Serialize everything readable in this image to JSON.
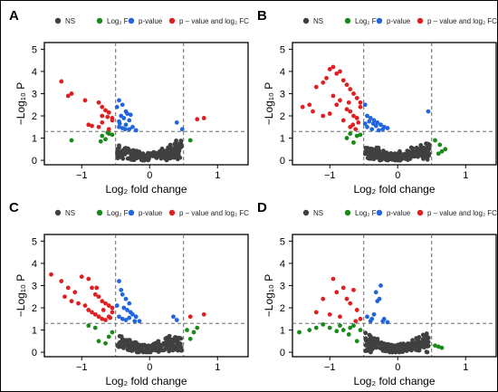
{
  "legend": [
    {
      "key": "ns",
      "label": "NS",
      "color": "#404040"
    },
    {
      "key": "fc",
      "label": "Log₂ FC",
      "color": "#1a8a1a"
    },
    {
      "key": "p",
      "label": "p-value",
      "color": "#2266dd"
    },
    {
      "key": "both",
      "label": "p – value and log₂ FC",
      "color": "#e02020"
    }
  ],
  "axis": {
    "xlabel": "Log₂ fold change",
    "ylabel": "−Log₁₀ P",
    "xticks": [
      "−1",
      "0",
      "1"
    ],
    "yticks": [
      "0",
      "1",
      "2",
      "3",
      "4",
      "5"
    ]
  },
  "chart_data": [
    {
      "panel": "A",
      "type": "scatter",
      "xlim": [
        -1.55,
        1.45
      ],
      "ylim": [
        -0.2,
        5.3
      ],
      "fc_cutoff": [
        -0.5,
        0.5
      ],
      "p_cutoff": 1.3,
      "points": {
        "both": [
          [
            -1.3,
            3.55
          ],
          [
            -1.2,
            2.9
          ],
          [
            -1.15,
            3.0
          ],
          [
            -0.95,
            2.7
          ],
          [
            -0.75,
            2.6
          ],
          [
            -0.7,
            2.4
          ],
          [
            -0.65,
            2.25
          ],
          [
            -0.6,
            2.15
          ],
          [
            -0.62,
            1.95
          ],
          [
            -0.55,
            1.9
          ],
          [
            -0.7,
            2.0
          ],
          [
            -0.9,
            1.6
          ],
          [
            -0.85,
            1.55
          ],
          [
            -0.75,
            1.5
          ],
          [
            -0.7,
            1.7
          ],
          [
            -0.6,
            1.4
          ],
          [
            -0.55,
            1.8
          ],
          [
            0.7,
            1.85
          ],
          [
            0.8,
            1.9
          ]
        ],
        "fc": [
          [
            -1.15,
            0.9
          ],
          [
            -0.7,
            1.1
          ],
          [
            -0.65,
            0.95
          ],
          [
            -0.6,
            1.2
          ],
          [
            -0.55,
            1.15
          ],
          [
            -0.72,
            0.85
          ],
          [
            -0.62,
            1.25
          ],
          [
            0.6,
            0.9
          ]
        ],
        "p": [
          [
            -0.48,
            2.4
          ],
          [
            -0.45,
            2.7
          ],
          [
            -0.4,
            2.5
          ],
          [
            -0.35,
            2.2
          ],
          [
            -0.42,
            2.0
          ],
          [
            -0.38,
            1.9
          ],
          [
            -0.3,
            1.8
          ],
          [
            -0.45,
            1.75
          ],
          [
            -0.35,
            1.6
          ],
          [
            -0.25,
            1.5
          ],
          [
            -0.4,
            1.45
          ],
          [
            -0.3,
            1.4
          ],
          [
            -0.2,
            1.35
          ],
          [
            -0.45,
            1.5
          ],
          [
            -0.33,
            2.1
          ],
          [
            -0.28,
            2.05
          ],
          [
            -0.44,
            1.65
          ],
          [
            -0.36,
            1.4
          ],
          [
            0.4,
            1.7
          ],
          [
            0.48,
            1.4
          ]
        ]
      }
    },
    {
      "panel": "B",
      "type": "scatter",
      "xlim": [
        -1.55,
        1.45
      ],
      "ylim": [
        -0.2,
        5.3
      ],
      "fc_cutoff": [
        -0.5,
        0.5
      ],
      "p_cutoff": 1.3,
      "points": {
        "both": [
          [
            -1.4,
            2.4
          ],
          [
            -1.3,
            2.5
          ],
          [
            -1.25,
            2.2
          ],
          [
            -1.2,
            3.3
          ],
          [
            -1.1,
            3.5
          ],
          [
            -1.0,
            4.1
          ],
          [
            -0.95,
            4.2
          ],
          [
            -0.9,
            3.9
          ],
          [
            -0.85,
            4.0
          ],
          [
            -0.8,
            3.6
          ],
          [
            -0.75,
            3.4
          ],
          [
            -0.7,
            3.2
          ],
          [
            -0.65,
            3.0
          ],
          [
            -0.6,
            2.8
          ],
          [
            -0.55,
            2.6
          ],
          [
            -1.05,
            3.7
          ],
          [
            -0.95,
            2.9
          ],
          [
            -0.85,
            2.7
          ],
          [
            -0.75,
            2.3
          ],
          [
            -0.7,
            2.2
          ],
          [
            -0.65,
            2.0
          ],
          [
            -0.6,
            1.9
          ],
          [
            -0.58,
            1.7
          ],
          [
            -0.55,
            2.4
          ],
          [
            -0.7,
            1.5
          ],
          [
            -0.62,
            1.4
          ],
          [
            -1.1,
            2.0
          ],
          [
            -0.8,
            1.8
          ],
          [
            -0.9,
            2.5
          ],
          [
            -1.0,
            2.1
          ],
          [
            -0.72,
            2.6
          ],
          [
            -0.66,
            1.6
          ]
        ],
        "fc": [
          [
            -0.75,
            1.0
          ],
          [
            -0.65,
            0.8
          ],
          [
            -0.6,
            1.1
          ],
          [
            -0.55,
            1.15
          ],
          [
            -0.7,
            1.2
          ],
          [
            0.6,
            0.3
          ],
          [
            0.65,
            0.4
          ],
          [
            0.55,
            0.9
          ],
          [
            0.7,
            0.5
          ],
          [
            0.62,
            0.7
          ]
        ],
        "p": [
          [
            -0.48,
            2.5
          ],
          [
            -0.45,
            2.0
          ],
          [
            -0.4,
            1.9
          ],
          [
            -0.35,
            1.8
          ],
          [
            -0.3,
            1.7
          ],
          [
            -0.25,
            1.6
          ],
          [
            -0.2,
            1.5
          ],
          [
            -0.15,
            1.45
          ],
          [
            -0.45,
            1.5
          ],
          [
            -0.38,
            1.4
          ],
          [
            -0.32,
            1.55
          ],
          [
            -0.28,
            1.35
          ],
          [
            -0.42,
            1.75
          ],
          [
            -0.22,
            1.4
          ],
          [
            -0.48,
            1.65
          ],
          [
            -0.36,
            1.65
          ],
          [
            0.45,
            2.2
          ]
        ]
      }
    },
    {
      "panel": "C",
      "type": "scatter",
      "xlim": [
        -1.55,
        1.45
      ],
      "ylim": [
        -0.2,
        5.3
      ],
      "fc_cutoff": [
        -0.5,
        0.5
      ],
      "p_cutoff": 1.3,
      "points": {
        "both": [
          [
            -1.45,
            3.5
          ],
          [
            -1.3,
            3.2
          ],
          [
            -1.2,
            2.9
          ],
          [
            -1.1,
            2.7
          ],
          [
            -1.0,
            3.4
          ],
          [
            -0.9,
            3.3
          ],
          [
            -0.85,
            2.9
          ],
          [
            -0.8,
            2.6
          ],
          [
            -0.75,
            2.5
          ],
          [
            -0.7,
            2.3
          ],
          [
            -0.65,
            2.2
          ],
          [
            -0.6,
            2.1
          ],
          [
            -0.55,
            2.0
          ],
          [
            -1.15,
            2.3
          ],
          [
            -1.05,
            2.2
          ],
          [
            -0.95,
            2.1
          ],
          [
            -0.9,
            1.9
          ],
          [
            -0.85,
            1.8
          ],
          [
            -0.8,
            1.7
          ],
          [
            -0.75,
            1.6
          ],
          [
            -0.7,
            1.5
          ],
          [
            -0.65,
            1.45
          ],
          [
            -0.6,
            1.6
          ],
          [
            -0.55,
            1.8
          ],
          [
            -1.25,
            2.5
          ],
          [
            -0.78,
            2.9
          ],
          [
            -0.68,
            1.9
          ],
          [
            -0.58,
            1.55
          ],
          [
            0.6,
            1.6
          ],
          [
            0.8,
            1.7
          ]
        ],
        "fc": [
          [
            -0.9,
            1.2
          ],
          [
            -0.8,
            1.1
          ],
          [
            -0.75,
            0.5
          ],
          [
            -0.65,
            0.4
          ],
          [
            -0.6,
            0.7
          ],
          [
            -0.55,
            0.9
          ],
          [
            0.55,
            1.0
          ],
          [
            0.65,
            0.9
          ],
          [
            0.6,
            0.6
          ],
          [
            0.7,
            1.1
          ]
        ],
        "p": [
          [
            -0.45,
            3.2
          ],
          [
            -0.42,
            2.8
          ],
          [
            -0.4,
            2.6
          ],
          [
            -0.35,
            2.4
          ],
          [
            -0.3,
            2.2
          ],
          [
            -0.38,
            2.0
          ],
          [
            -0.33,
            1.9
          ],
          [
            -0.28,
            1.8
          ],
          [
            -0.25,
            1.7
          ],
          [
            -0.2,
            1.6
          ],
          [
            -0.45,
            1.6
          ],
          [
            -0.4,
            1.5
          ],
          [
            -0.35,
            1.45
          ],
          [
            -0.22,
            1.4
          ],
          [
            -0.48,
            2.1
          ],
          [
            -0.3,
            1.55
          ],
          [
            -0.15,
            1.4
          ],
          [
            0.35,
            1.6
          ],
          [
            0.4,
            1.45
          ]
        ]
      }
    },
    {
      "panel": "D",
      "type": "scatter",
      "xlim": [
        -1.55,
        1.45
      ],
      "ylim": [
        -0.2,
        5.3
      ],
      "fc_cutoff": [
        -0.5,
        0.5
      ],
      "p_cutoff": 1.3,
      "points": {
        "both": [
          [
            -1.1,
            2.4
          ],
          [
            -0.95,
            3.3
          ],
          [
            -0.9,
            2.7
          ],
          [
            -0.8,
            2.9
          ],
          [
            -0.75,
            2.4
          ],
          [
            -0.7,
            2.2
          ],
          [
            -0.65,
            2.8
          ],
          [
            -0.6,
            1.9
          ],
          [
            -0.55,
            1.5
          ],
          [
            -1.2,
            1.8
          ],
          [
            -1.0,
            1.7
          ],
          [
            -0.85,
            1.6
          ],
          [
            -0.62,
            1.4
          ]
        ],
        "fc": [
          [
            -1.45,
            0.9
          ],
          [
            -1.3,
            1.0
          ],
          [
            -1.2,
            1.1
          ],
          [
            -1.1,
            1.25
          ],
          [
            -1.0,
            1.1
          ],
          [
            -0.9,
            0.95
          ],
          [
            -0.85,
            1.2
          ],
          [
            -0.8,
            1.0
          ],
          [
            -0.72,
            0.8
          ],
          [
            -0.7,
            1.1
          ],
          [
            -0.65,
            1.2
          ],
          [
            -0.6,
            0.5
          ],
          [
            -0.55,
            1.0
          ],
          [
            0.6,
            0.25
          ],
          [
            0.65,
            0.2
          ],
          [
            0.55,
            0.3
          ]
        ],
        "p": [
          [
            -0.45,
            1.6
          ],
          [
            -0.4,
            1.4
          ],
          [
            -0.35,
            1.7
          ],
          [
            -0.3,
            2.3
          ],
          [
            -0.27,
            2.4
          ],
          [
            -0.32,
            2.7
          ],
          [
            -0.25,
            3.0
          ],
          [
            -0.2,
            1.5
          ],
          [
            -0.38,
            1.5
          ],
          [
            -0.15,
            1.35
          ],
          [
            -0.22,
            1.4
          ]
        ]
      }
    }
  ]
}
